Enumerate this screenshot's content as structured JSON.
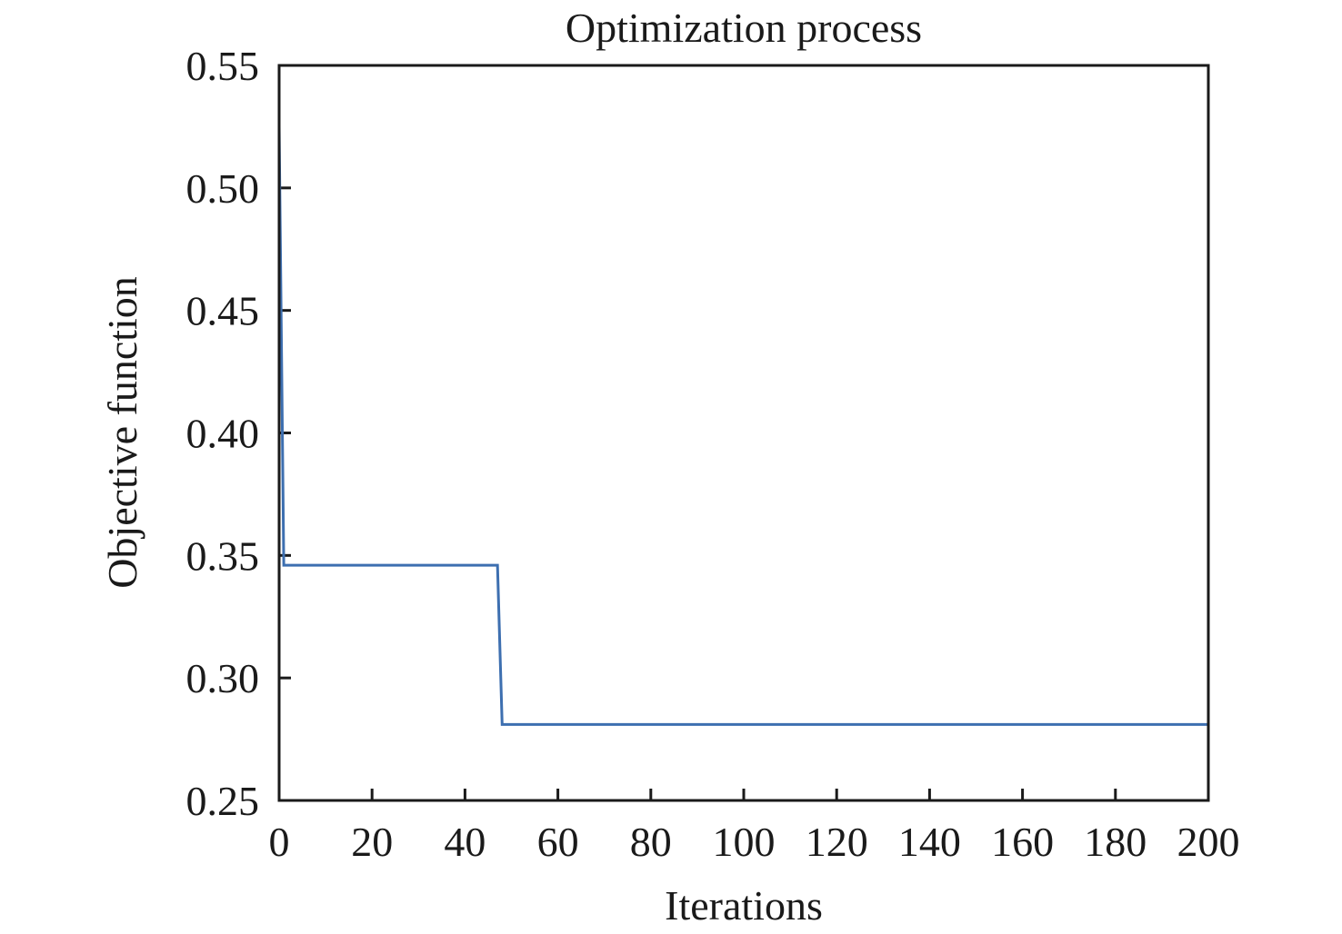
{
  "chart_data": {
    "type": "line",
    "title": "Optimization process",
    "xlabel": "Iterations",
    "ylabel": "Objective function",
    "xlim": [
      0,
      200
    ],
    "ylim": [
      0.25,
      0.55
    ],
    "xticks": [
      0,
      20,
      40,
      60,
      80,
      100,
      120,
      140,
      160,
      180,
      200
    ],
    "yticks": [
      "0.25",
      "0.30",
      "0.35",
      "0.40",
      "0.45",
      "0.50",
      "0.55"
    ],
    "grid": false,
    "series": [
      {
        "name": "objective",
        "color": "#3d6fb0",
        "x": [
          0,
          1,
          47,
          48,
          200
        ],
        "y": [
          0.525,
          0.346,
          0.346,
          0.281,
          0.281
        ]
      }
    ]
  }
}
